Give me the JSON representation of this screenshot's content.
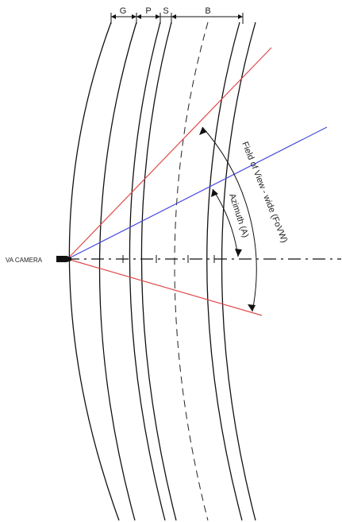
{
  "camera": {
    "label": "VA CAMERA",
    "color": "#111111"
  },
  "layers": {
    "labels": [
      "G",
      "P",
      "S",
      "B"
    ]
  },
  "angles": {
    "field_of_view_label": "Field of View - wide (FoVW)",
    "azimuth_label": "Azimuth (A)"
  },
  "colors": {
    "fov_rays": "#e04a4a",
    "azimuth_ray": "#4a4adf",
    "lines": "#111111"
  }
}
